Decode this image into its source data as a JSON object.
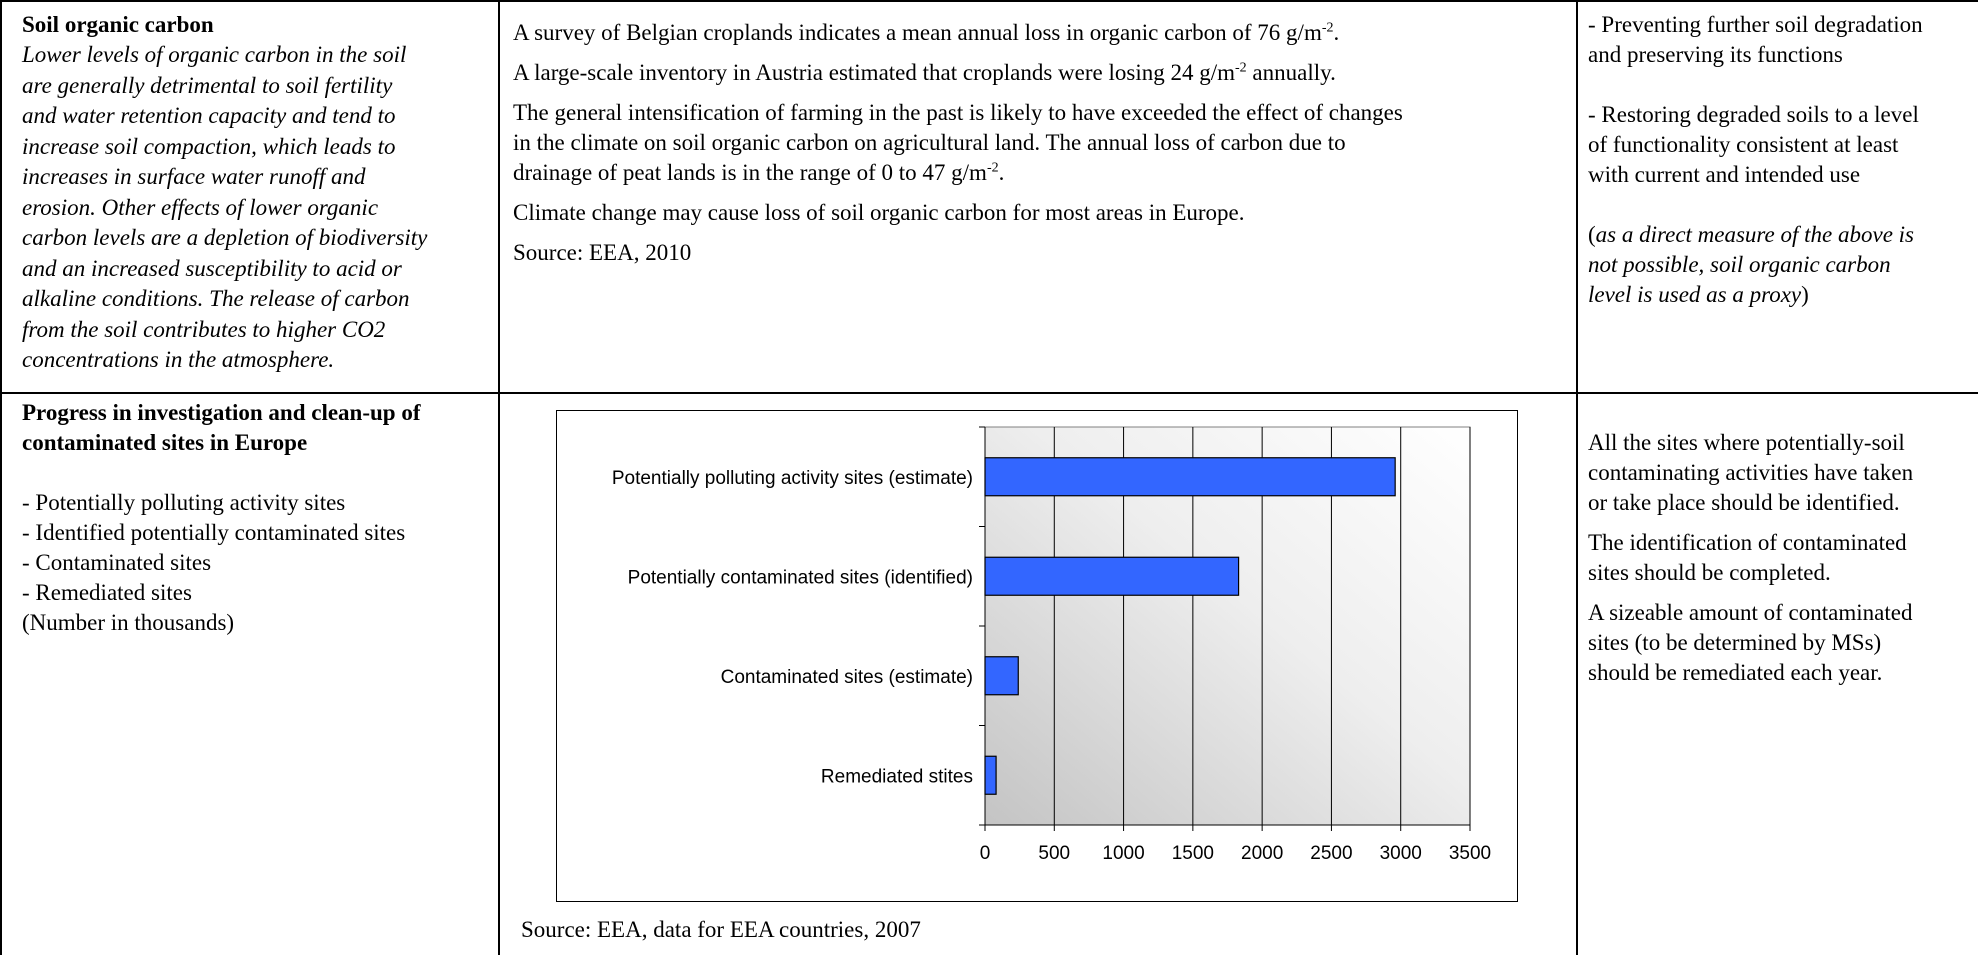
{
  "row1": {
    "indicator_title": "Soil organic carbon",
    "indicator_desc_lines": [
      "Lower levels of organic carbon in the soil",
      "are generally detrimental to soil fertility",
      "and water retention capacity and tend to",
      "increase soil compaction, which leads to",
      "increases in surface water runoff and",
      "erosion. Other effects of lower organic",
      "carbon levels are a depletion of biodiversity",
      "and an increased susceptibility to acid or",
      "alkaline conditions. The release of carbon",
      "from the soil contributes to higher CO2",
      "concentrations in the atmosphere."
    ],
    "p1": "A survey of Belgian croplands indicates a mean annual loss in organic carbon of 76 g/m",
    "p1_sup": "-2",
    "p1_end": ".",
    "p2": "A large-scale inventory in Austria estimated that croplands were losing 24 g/m",
    "p2_sup": "-2",
    "p2_end": " annually.",
    "p3_lines": [
      "The general intensification of farming in the past is likely to have exceeded the effect of changes",
      "in the climate on soil organic carbon on agricultural land. The annual loss of carbon due to"
    ],
    "p3_last": "drainage of peat lands is in the range of 0 to 47 g/m",
    "p3_sup": "-2",
    "p3_end": ".",
    "p4": "Climate change may cause loss of soil organic carbon for most areas in Europe.",
    "p5": "Source: EEA, 2010",
    "obj1_lines": [
      "- Preventing further soil degradation",
      "and preserving its functions"
    ],
    "obj2_lines": [
      "- Restoring degraded soils to a level",
      "of functionality consistent at least",
      "with current and intended use"
    ],
    "obj3_open": "(",
    "obj3_lines": [
      "as a direct measure of the above is",
      "not possible, soil organic carbon",
      "level is used as a proxy"
    ],
    "obj3_close": ")"
  },
  "row2": {
    "title_lines": [
      "Progress in investigation and clean-up of",
      "contaminated sites in Europe"
    ],
    "list_items": [
      "- Potentially polluting activity sites",
      "- Identified potentially contaminated sites",
      "- Contaminated sites",
      "- Remediated sites",
      "(Number in thousands)"
    ],
    "source": "Source: EEA, data for EEA countries, 2007",
    "targets": [
      [
        "All the sites where potentially-soil",
        "contaminating activities have taken",
        "or take place should be identified."
      ],
      [
        "The identification of contaminated",
        "sites should be completed."
      ],
      [
        "A sizeable amount of contaminated",
        "sites (to be determined by MSs)",
        "should be remediated each year."
      ]
    ]
  },
  "chart_data": {
    "type": "bar",
    "orientation": "horizontal",
    "categories": [
      "Potentially polluting activity sites (estimate)",
      "Potentially contaminated sites (identified)",
      "Contaminated sites (estimate)",
      "Remediated stites"
    ],
    "values": [
      2960,
      1830,
      240,
      80
    ],
    "xticks": [
      "0",
      "500",
      "1000",
      "1500",
      "2000",
      "2500",
      "3000",
      "3500"
    ],
    "xlim": [
      0,
      3500
    ],
    "grid": true,
    "bar_color": "#3366ff",
    "title": "",
    "xlabel": "",
    "ylabel": ""
  }
}
